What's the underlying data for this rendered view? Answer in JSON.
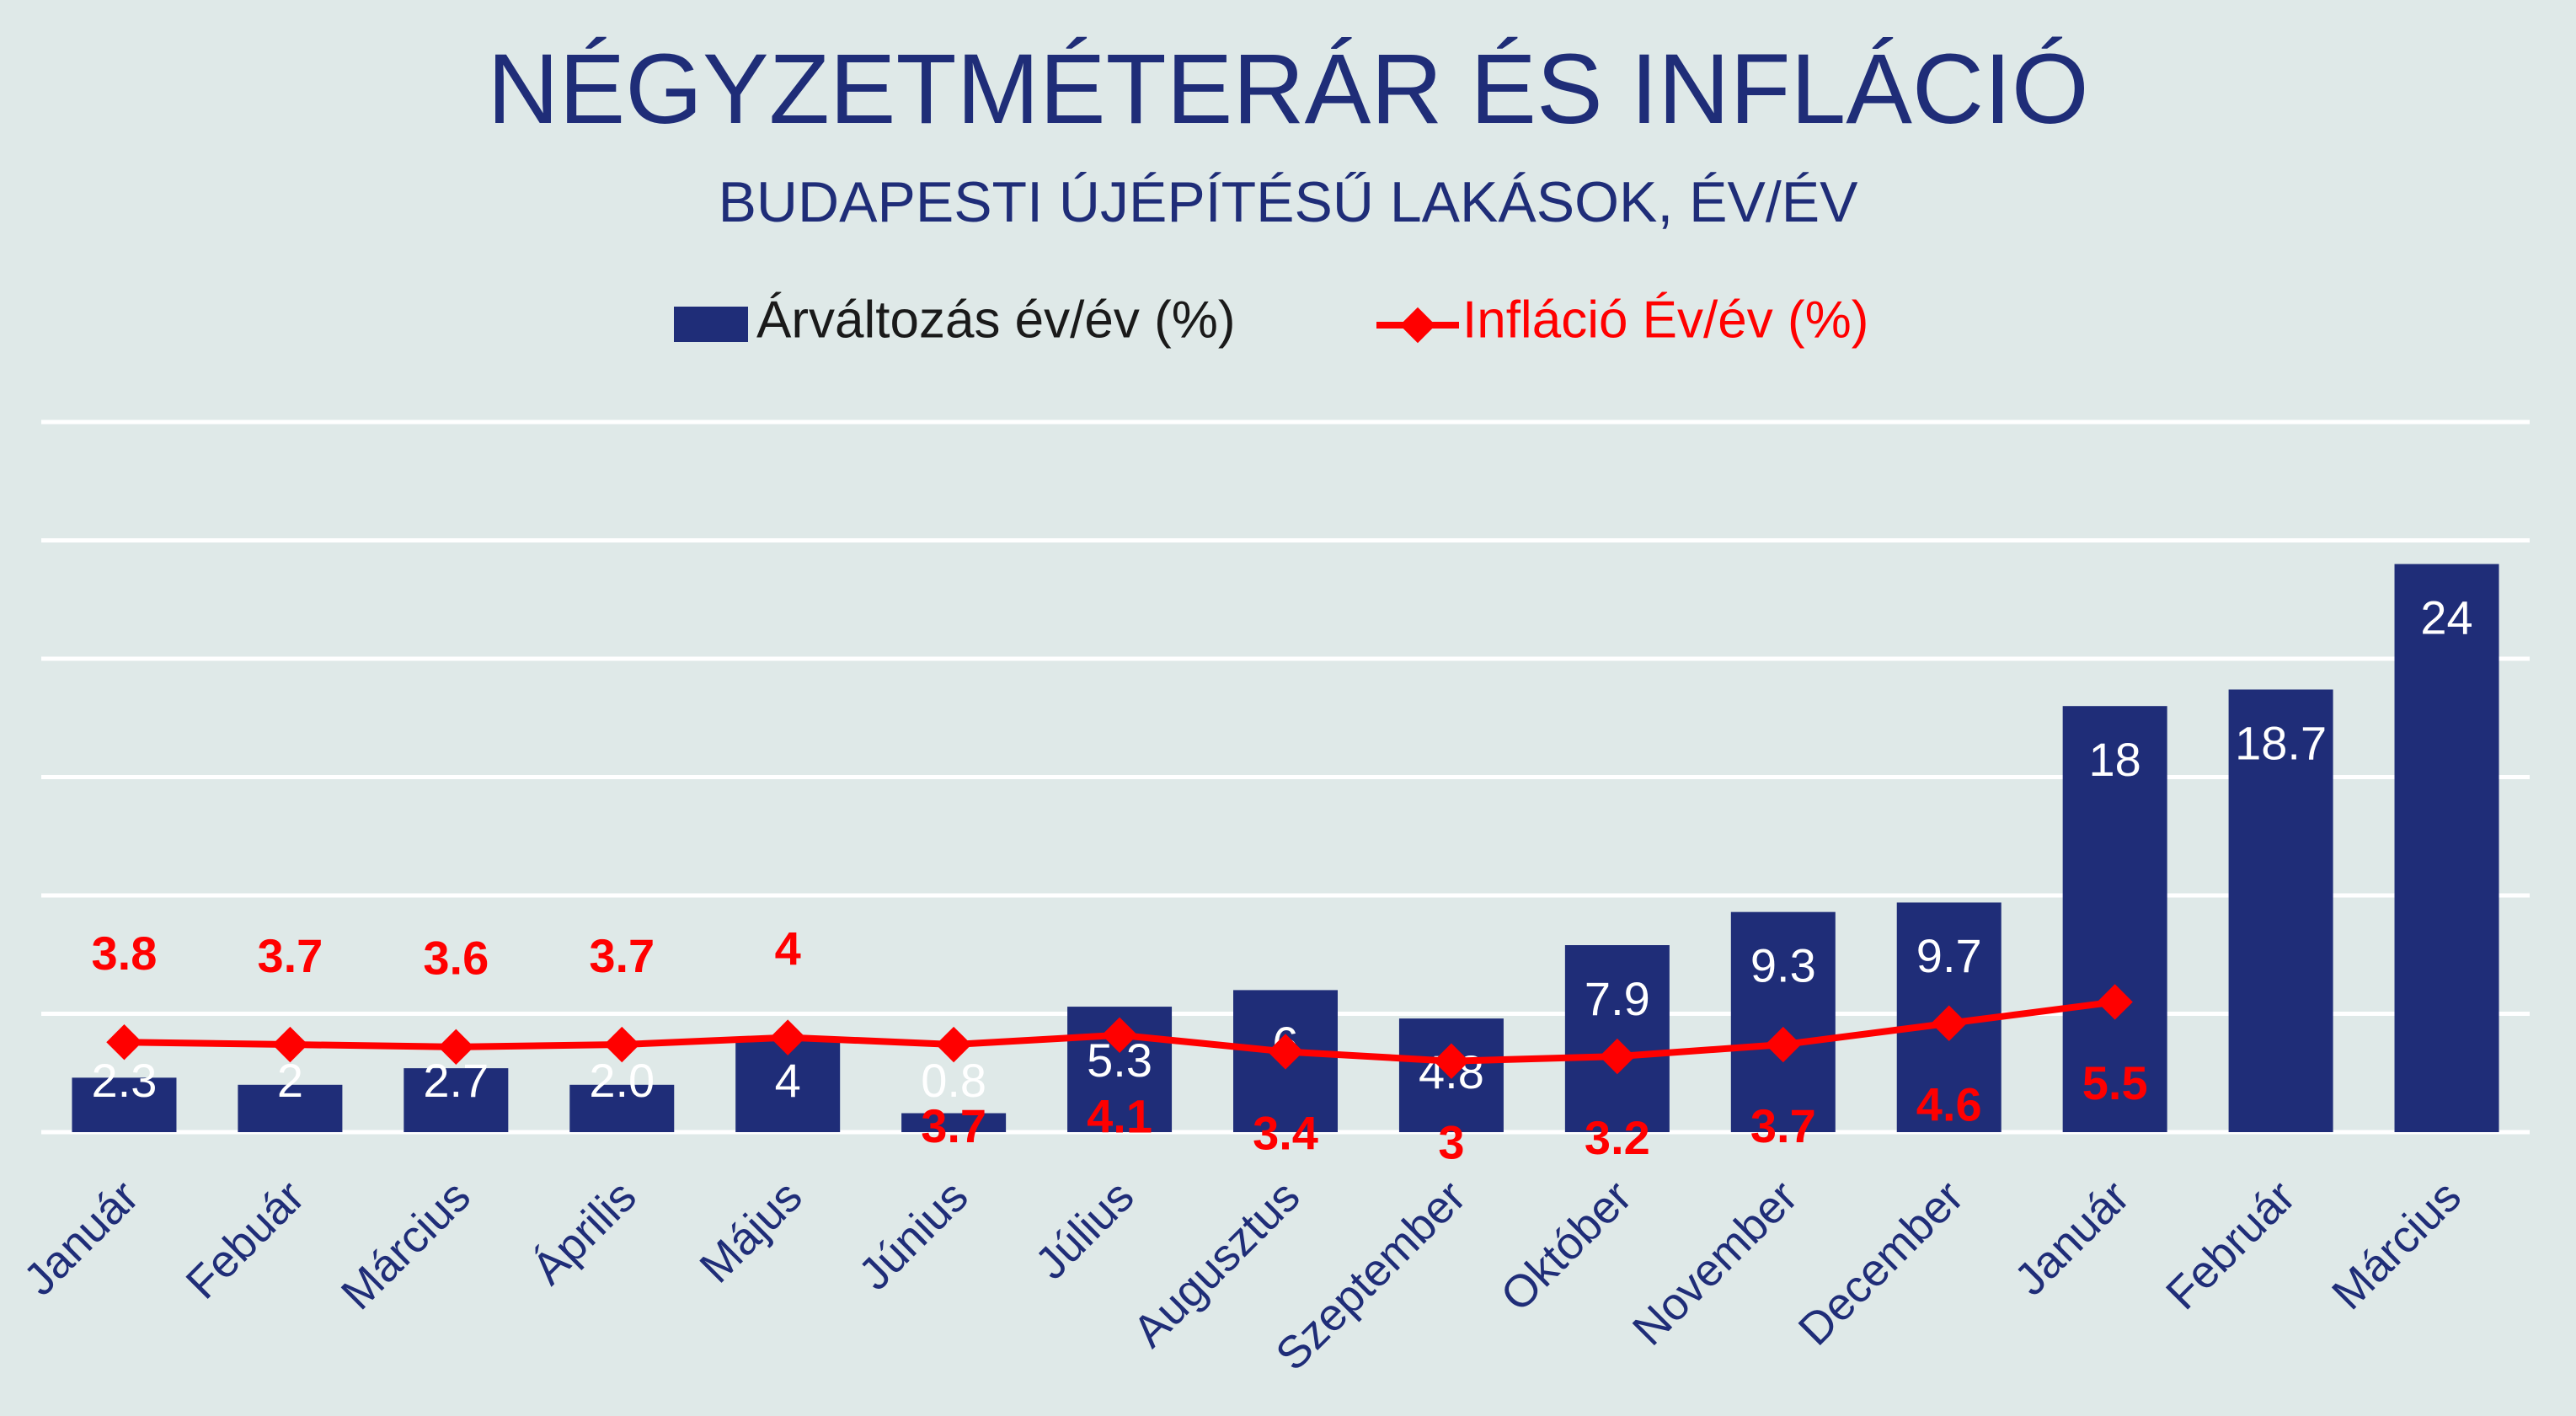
{
  "chart_data": {
    "type": "bar_line",
    "title": "NÉGYZETMÉTERÁR ÉS INFLÁCIÓ",
    "subtitle": "BUDAPESTI ÚJÉPÍTÉSŰ LAKÁSOK, ÉV/ÉV",
    "categories": [
      "Január",
      "Febuár",
      "Március",
      "Április",
      "Május",
      "Június",
      "Július",
      "Augusztus",
      "Szeptember",
      "Október",
      "November",
      "December",
      "Január",
      "Február",
      "Március"
    ],
    "series": [
      {
        "name": "Árváltozás év/év (%)",
        "type": "bar",
        "color": "#1f2d78",
        "label_color": "#ffffff",
        "values": [
          2.3,
          2,
          2.7,
          2.0,
          4,
          0.8,
          5.3,
          6,
          4.8,
          7.9,
          9.3,
          9.7,
          18,
          18.7,
          24
        ],
        "value_labels": [
          "2.3",
          "2",
          "2.7",
          "2.0",
          "4",
          "0.8",
          "5.3",
          "6",
          "4.8",
          "7.9",
          "9.3",
          "9.7",
          "18",
          "18.7",
          "24"
        ]
      },
      {
        "name": "Infláció Év/év (%)",
        "type": "line",
        "color": "#ff0000",
        "label_color": "#ff0000",
        "values": [
          3.8,
          3.7,
          3.6,
          3.7,
          4,
          3.7,
          4.1,
          3.4,
          3,
          3.2,
          3.7,
          4.6,
          5.5,
          null,
          null
        ]
      }
    ],
    "ylim": [
      0,
      30
    ],
    "yticks": [
      0,
      5,
      10,
      15,
      20,
      25,
      30
    ],
    "grid": true,
    "legend": "top"
  }
}
